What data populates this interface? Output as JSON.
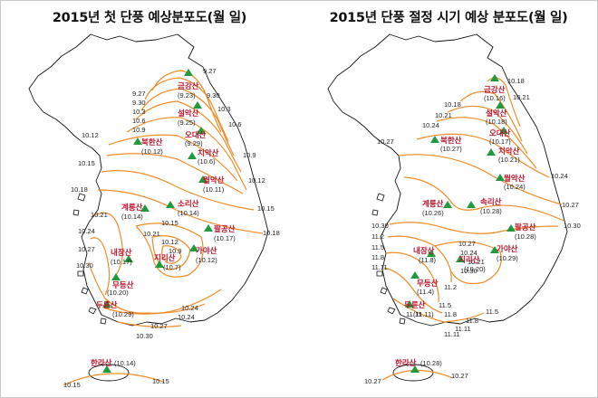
{
  "maps": [
    {
      "title": "2015년 첫 단풍 예상분포도(월 일)",
      "mountains": [
        {
          "name": "금강산",
          "date": "(9.23)"
        },
        {
          "name": "설악산",
          "date": "(9.25)"
        },
        {
          "name": "오대산",
          "date": "(9.29)"
        },
        {
          "name": "치악산",
          "date": "(10.6)"
        },
        {
          "name": "북한산",
          "date": "(10.12)"
        },
        {
          "name": "월악산",
          "date": "(10.11)"
        },
        {
          "name": "소리산",
          "date": "(10.14)"
        },
        {
          "name": "계룡산",
          "date": "(10.14)"
        },
        {
          "name": "팔공산",
          "date": "(10.17)"
        },
        {
          "name": "가야산",
          "date": "(10.12)"
        },
        {
          "name": "내장산",
          "date": "(10.17)"
        },
        {
          "name": "지리산",
          "date": "(10.7)"
        },
        {
          "name": "무등산",
          "date": "(10.20)"
        },
        {
          "name": "두륜산",
          "date": "(10.29)"
        },
        {
          "name": "한라산",
          "date": "(10.14)"
        }
      ],
      "isolines": [
        "9.27",
        "9.30",
        "9.27",
        "9.30",
        "10.3",
        "10.6",
        "10.3",
        "10.6",
        "10.9",
        "10.12",
        "10.9",
        "10.15",
        "10.18",
        "10.21",
        "10.24",
        "10.27",
        "10.30",
        "10.12",
        "10.15",
        "10.15",
        "10.18",
        "10.21",
        "10.12",
        "10.9",
        "10.24",
        "10.24",
        "10.27",
        "10.30",
        "10.15",
        "10.15"
      ]
    },
    {
      "title": "2015년 단풍 절정 시기 예상 분포도(월 일)",
      "mountains": [
        {
          "name": "금강산",
          "date": "(10.16)"
        },
        {
          "name": "설악산",
          "date": "(10.18)"
        },
        {
          "name": "오대산",
          "date": "(10.17)"
        },
        {
          "name": "치악산",
          "date": "(10.21)"
        },
        {
          "name": "북한산",
          "date": "(10.27)"
        },
        {
          "name": "월악산",
          "date": "(10.24)"
        },
        {
          "name": "속리산",
          "date": "(10.28)"
        },
        {
          "name": "계룡산",
          "date": "(10.26)"
        },
        {
          "name": "팔공산",
          "date": "(10.28)"
        },
        {
          "name": "가야산",
          "date": "(10.29)"
        },
        {
          "name": "내장산",
          "date": "(11.8)"
        },
        {
          "name": "지리산",
          "date": "(10.20)"
        },
        {
          "name": "무등산",
          "date": "(11.4)"
        },
        {
          "name": "두륜산",
          "date": "(11.11)"
        },
        {
          "name": "한라산",
          "date": "(10.28)"
        }
      ],
      "isolines": [
        "10.18",
        "10.21",
        "10.18",
        "10.21",
        "10.24",
        "10.27",
        "10.24",
        "10.27",
        "10.30",
        "10.30",
        "11.2",
        "11.5",
        "11.8",
        "11.11",
        "11.11",
        "10.27",
        "10.24",
        "10.21",
        "10.30",
        "11.2",
        "11.5",
        "11.8",
        "11.11",
        "11.5",
        "11.8",
        "11.11",
        "10.27",
        "10.27"
      ]
    }
  ]
}
